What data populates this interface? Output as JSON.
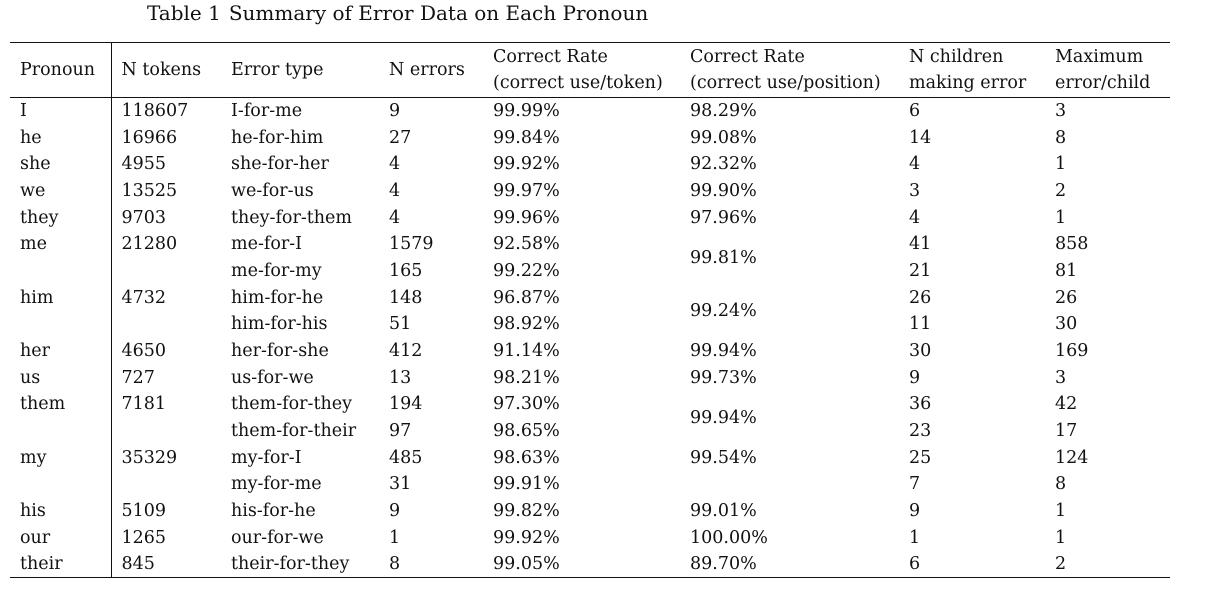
{
  "caption": {
    "label": "Table 1",
    "title": "Summary of Error Data on Each Pronoun"
  },
  "headers": [
    [
      "Pronoun"
    ],
    [
      "N tokens"
    ],
    [
      "Error type"
    ],
    [
      "N errors"
    ],
    [
      "Correct Rate",
      "(correct use/token)"
    ],
    [
      "Correct Rate",
      "(correct use/position)"
    ],
    [
      "N children",
      "making error"
    ],
    [
      "Maximum",
      "error/child"
    ]
  ],
  "rows": [
    {
      "pronoun": "I",
      "tokens": "118607",
      "error_type": "I-for-me",
      "errors": "9",
      "rate_token": "99.99%",
      "rate_position": "98.29%",
      "position_rowspan": 1,
      "children": "6",
      "max": "3"
    },
    {
      "pronoun": "he",
      "tokens": "16966",
      "error_type": "he-for-him",
      "errors": "27",
      "rate_token": "99.84%",
      "rate_position": "99.08%",
      "position_rowspan": 1,
      "children": "14",
      "max": "8"
    },
    {
      "pronoun": "she",
      "tokens": "4955",
      "error_type": "she-for-her",
      "errors": "4",
      "rate_token": "99.92%",
      "rate_position": "92.32%",
      "position_rowspan": 1,
      "children": "4",
      "max": "1"
    },
    {
      "pronoun": "we",
      "tokens": "13525",
      "error_type": "we-for-us",
      "errors": "4",
      "rate_token": "99.97%",
      "rate_position": "99.90%",
      "position_rowspan": 1,
      "children": "3",
      "max": "2"
    },
    {
      "pronoun": "they",
      "tokens": "9703",
      "error_type": "they-for-them",
      "errors": "4",
      "rate_token": "99.96%",
      "rate_position": "97.96%",
      "position_rowspan": 1,
      "children": "4",
      "max": "1"
    },
    {
      "pronoun": "me",
      "tokens": "21280",
      "error_type": "me-for-I",
      "errors": "1579",
      "rate_token": "92.58%",
      "rate_position": "99.81%",
      "position_rowspan": 2,
      "children": "41",
      "max": "858"
    },
    {
      "pronoun": "",
      "tokens": "",
      "error_type": "me-for-my",
      "errors": "165",
      "rate_token": "99.22%",
      "position_rowspan": 0,
      "children": "21",
      "max": "81"
    },
    {
      "pronoun": "him",
      "tokens": "4732",
      "error_type": "him-for-he",
      "errors": "148",
      "rate_token": "96.87%",
      "rate_position": "99.24%",
      "position_rowspan": 2,
      "children": "26",
      "max": "26"
    },
    {
      "pronoun": "",
      "tokens": "",
      "error_type": "him-for-his",
      "errors": "51",
      "rate_token": "98.92%",
      "position_rowspan": 0,
      "children": "11",
      "max": "30"
    },
    {
      "pronoun": "her",
      "tokens": "4650",
      "error_type": "her-for-she",
      "errors": "412",
      "rate_token": "91.14%",
      "rate_position": "99.94%",
      "position_rowspan": 1,
      "children": "30",
      "max": "169"
    },
    {
      "pronoun": "us",
      "tokens": "727",
      "error_type": "us-for-we",
      "errors": "13",
      "rate_token": "98.21%",
      "rate_position": "99.73%",
      "position_rowspan": 1,
      "children": "9",
      "max": "3"
    },
    {
      "pronoun": "them",
      "tokens": "7181",
      "error_type": "them-for-they",
      "errors": "194",
      "rate_token": "97.30%",
      "rate_position": "99.94%",
      "position_rowspan": 2,
      "children": "36",
      "max": "42"
    },
    {
      "pronoun": "",
      "tokens": "",
      "error_type": "them-for-their",
      "errors": "97",
      "rate_token": "98.65%",
      "position_rowspan": 0,
      "children": "23",
      "max": "17"
    },
    {
      "pronoun": "my",
      "tokens": "35329",
      "error_type": "my-for-I",
      "errors": "485",
      "rate_token": "98.63%",
      "rate_position": "99.54%",
      "position_rowspan": 1,
      "children": "25",
      "max": "124"
    },
    {
      "pronoun": "",
      "tokens": "",
      "error_type": "my-for-me",
      "errors": "31",
      "rate_token": "99.91%",
      "rate_position": "",
      "position_rowspan": 1,
      "children": "7",
      "max": "8"
    },
    {
      "pronoun": "his",
      "tokens": "5109",
      "error_type": "his-for-he",
      "errors": "9",
      "rate_token": "99.82%",
      "rate_position": "99.01%",
      "position_rowspan": 1,
      "children": "9",
      "max": "1"
    },
    {
      "pronoun": "our",
      "tokens": "1265",
      "error_type": "our-for-we",
      "errors": "1",
      "rate_token": "99.92%",
      "rate_position": "100.00%",
      "position_rowspan": 1,
      "children": "1",
      "max": "1"
    },
    {
      "pronoun": "their",
      "tokens": "845",
      "error_type": "their-for-they",
      "errors": "8",
      "rate_token": "99.05%",
      "rate_position": "89.70%",
      "position_rowspan": 1,
      "children": "6",
      "max": "2"
    }
  ]
}
